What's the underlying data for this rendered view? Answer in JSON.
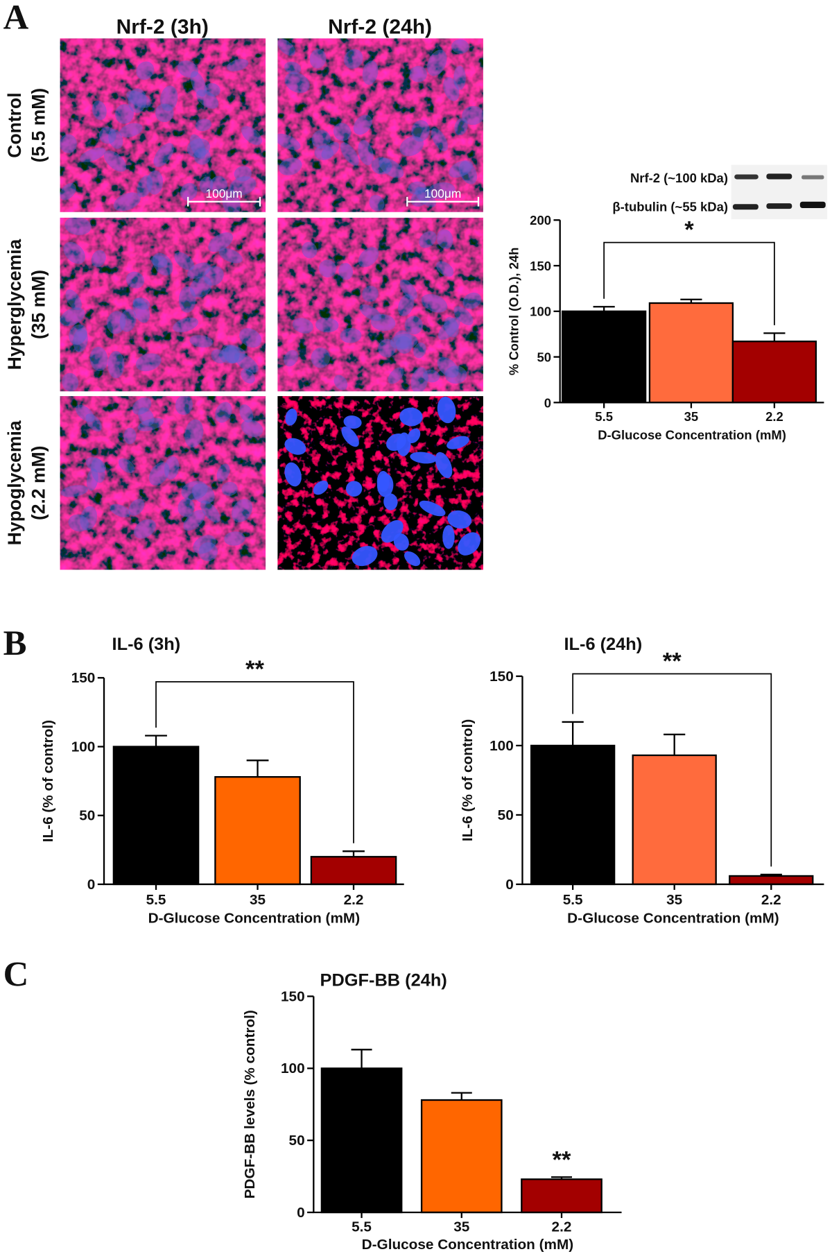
{
  "figure": {
    "panel_labels": [
      "A",
      "B",
      "C"
    ],
    "microscopy": {
      "column_titles": [
        "Nrf-2 (3h)",
        "Nrf-2 (24h)"
      ],
      "row_labels": [
        [
          "Control",
          "(5.5 mM)"
        ],
        [
          "Hyperglycemia",
          "(35 mM)"
        ],
        [
          "Hypoglycemia",
          "(2.2 mM)"
        ]
      ],
      "scale_bar": "100μm"
    },
    "western_blot": {
      "labels": [
        "Nrf-2 (~100 kDa)",
        "β-tubulin (~55 kDa)"
      ]
    }
  },
  "chart_data": [
    {
      "type": "bar",
      "ylabel": "% Control (O.D.), 24h",
      "xlabel": "D-Glucose Concentration (mM)",
      "categories": [
        "5.5",
        "35",
        "2.2"
      ],
      "values": [
        100,
        109,
        67
      ],
      "errors": [
        5,
        4,
        9
      ],
      "colors": [
        "#000000",
        "#ff6b3d",
        "#a30000"
      ],
      "ylim": [
        0,
        200
      ],
      "yticks": [
        0,
        50,
        100,
        150,
        200
      ],
      "significance": {
        "label": "*",
        "bracket": [
          0,
          2
        ]
      }
    },
    {
      "type": "bar",
      "title": "IL-6 (3h)",
      "ylabel": "IL-6 (% of control)",
      "xlabel": "D-Glucose Concentration (mM)",
      "categories": [
        "5.5",
        "35",
        "2.2"
      ],
      "values": [
        100,
        78,
        20
      ],
      "errors": [
        8,
        12,
        4
      ],
      "colors": [
        "#000000",
        "#ff6600",
        "#a30000"
      ],
      "ylim": [
        0,
        150
      ],
      "yticks": [
        0,
        50,
        100,
        150
      ],
      "significance": {
        "label": "**",
        "bracket": [
          0,
          2
        ]
      }
    },
    {
      "type": "bar",
      "title": "IL-6 (24h)",
      "ylabel": "IL-6 (% of control)",
      "xlabel": "D-Glucose Concentration (mM)",
      "categories": [
        "5.5",
        "35",
        "2.2"
      ],
      "values": [
        100,
        93,
        6
      ],
      "errors": [
        17,
        15,
        1
      ],
      "colors": [
        "#000000",
        "#ff6b3d",
        "#a30000"
      ],
      "ylim": [
        0,
        150
      ],
      "yticks": [
        0,
        50,
        100,
        150
      ],
      "significance": {
        "label": "**",
        "bracket": [
          0,
          2
        ]
      }
    },
    {
      "type": "bar",
      "title": "PDGF-BB (24h)",
      "ylabel": "PDGF-BB levels (% control)",
      "xlabel": "D-Glucose Concentration (mM)",
      "categories": [
        "5.5",
        "35",
        "2.2"
      ],
      "values": [
        100,
        78,
        23
      ],
      "errors": [
        13,
        5,
        1.5
      ],
      "colors": [
        "#000000",
        "#ff6600",
        "#a30000"
      ],
      "ylim": [
        0,
        150
      ],
      "yticks": [
        0,
        50,
        100,
        150
      ],
      "significance": {
        "label": "**",
        "bar": 2
      }
    }
  ]
}
